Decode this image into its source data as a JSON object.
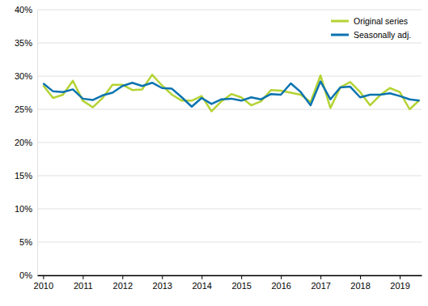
{
  "chart_data": {
    "type": "line",
    "x": [
      2010,
      2010.25,
      2010.5,
      2010.75,
      2011,
      2011.25,
      2011.5,
      2011.75,
      2012,
      2012.25,
      2012.5,
      2012.75,
      2013,
      2013.25,
      2013.5,
      2013.75,
      2014,
      2014.25,
      2014.5,
      2014.75,
      2015,
      2015.25,
      2015.5,
      2015.75,
      2016,
      2016.25,
      2016.5,
      2016.75,
      2017,
      2017.25,
      2017.5,
      2017.75,
      2018,
      2018.25,
      2018.5,
      2018.75,
      2019,
      2019.25,
      2019.5
    ],
    "series": [
      {
        "name": "Original series",
        "color": "#b4d334",
        "values": [
          28.6,
          26.7,
          27.2,
          29.3,
          26.3,
          25.3,
          26.7,
          28.7,
          28.7,
          27.9,
          28.0,
          30.2,
          28.6,
          27.2,
          26.3,
          26.3,
          27.0,
          24.7,
          26.2,
          27.3,
          26.8,
          25.6,
          26.2,
          27.9,
          27.8,
          27.5,
          27.2,
          26.1,
          30.1,
          25.2,
          28.3,
          29.1,
          27.6,
          25.6,
          27.1,
          28.2,
          27.6,
          25.0,
          26.4
        ]
      },
      {
        "name": "Seasonally adj.",
        "color": "#0b73b0",
        "values": [
          28.9,
          27.7,
          27.6,
          28.0,
          26.6,
          26.4,
          27.1,
          27.5,
          28.5,
          29.0,
          28.5,
          29.0,
          28.2,
          28.1,
          26.8,
          25.4,
          26.7,
          25.8,
          26.5,
          26.6,
          26.3,
          26.8,
          26.5,
          27.3,
          27.2,
          28.9,
          27.6,
          25.6,
          29.2,
          26.5,
          28.3,
          28.4,
          26.8,
          27.2,
          27.2,
          27.4,
          27.0,
          26.5,
          26.3
        ]
      }
    ],
    "xlim": [
      2009.85,
      2019.55
    ],
    "xticks": [
      2010,
      2011,
      2012,
      2013,
      2014,
      2015,
      2016,
      2017,
      2018,
      2019
    ],
    "ylim": [
      0,
      40
    ],
    "yticks": [
      {
        "value": 0,
        "label": "0%"
      },
      {
        "value": 5,
        "label": "5%"
      },
      {
        "value": 10,
        "label": "10%"
      },
      {
        "value": 15,
        "label": "15%"
      },
      {
        "value": 20,
        "label": "20%"
      },
      {
        "value": 25,
        "label": "25%"
      },
      {
        "value": 30,
        "label": "30%"
      },
      {
        "value": 35,
        "label": "35%"
      },
      {
        "value": 40,
        "label": "40%"
      }
    ],
    "grid": true,
    "legend": "top-right"
  }
}
